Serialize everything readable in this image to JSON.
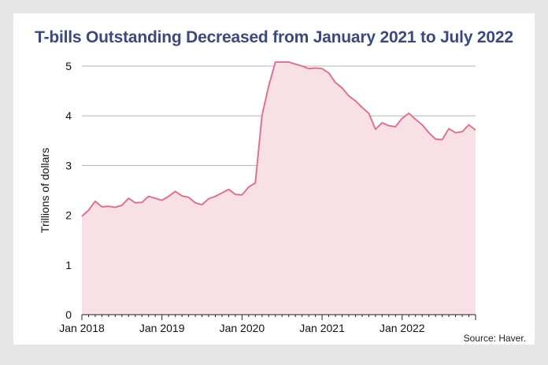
{
  "title": "T-bills Outstanding Decreased from January 2021 to July 2022",
  "source": "Source: Haver.",
  "chart_data": {
    "type": "area",
    "title": "T-bills Outstanding Decreased from January 2021 to July 2022",
    "xlabel": "",
    "ylabel": "Trillions of dollars",
    "ylim": [
      0,
      5
    ],
    "xlim": [
      "2018-01",
      "2022-12"
    ],
    "y_ticks": [
      "0",
      "1",
      "2",
      "3",
      "4",
      "5"
    ],
    "x_ticks": [
      "Jan 2018",
      "Jan 2019",
      "Jan 2020",
      "Jan 2021",
      "Jan 2022"
    ],
    "grid": true,
    "line_color": "#d9758d",
    "fill_color": "#f8e0e6",
    "series": [
      {
        "x": [
          "2018-01",
          "2018-02",
          "2018-03",
          "2018-04",
          "2018-05",
          "2018-06",
          "2018-07",
          "2018-08",
          "2018-09",
          "2018-10",
          "2018-11",
          "2018-12",
          "2019-01",
          "2019-02",
          "2019-03",
          "2019-04",
          "2019-05",
          "2019-06",
          "2019-07",
          "2019-08",
          "2019-09",
          "2019-10",
          "2019-11",
          "2019-12",
          "2020-01",
          "2020-02",
          "2020-03",
          "2020-04",
          "2020-05",
          "2020-06",
          "2020-07",
          "2020-08",
          "2020-09",
          "2020-10",
          "2020-11",
          "2020-12",
          "2021-01",
          "2021-02",
          "2021-03",
          "2021-04",
          "2021-05",
          "2021-06",
          "2021-07",
          "2021-08",
          "2021-09",
          "2021-10",
          "2021-11",
          "2021-12",
          "2022-01",
          "2022-02",
          "2022-03",
          "2022-04",
          "2022-05",
          "2022-06",
          "2022-07",
          "2022-08",
          "2022-09",
          "2022-10",
          "2022-11",
          "2022-12"
        ],
        "values": [
          1.98,
          2.1,
          2.28,
          2.17,
          2.18,
          2.16,
          2.2,
          2.34,
          2.25,
          2.26,
          2.38,
          2.34,
          2.3,
          2.38,
          2.48,
          2.39,
          2.36,
          2.25,
          2.21,
          2.33,
          2.38,
          2.45,
          2.52,
          2.42,
          2.41,
          2.57,
          2.65,
          4.01,
          4.6,
          5.08,
          5.08,
          5.08,
          5.04,
          5.0,
          4.95,
          4.96,
          4.95,
          4.86,
          4.67,
          4.56,
          4.4,
          4.3,
          4.17,
          4.05,
          3.73,
          3.86,
          3.8,
          3.78,
          3.95,
          4.05,
          3.93,
          3.82,
          3.66,
          3.53,
          3.52,
          3.74,
          3.66,
          3.68,
          3.82,
          3.71
        ]
      }
    ]
  }
}
